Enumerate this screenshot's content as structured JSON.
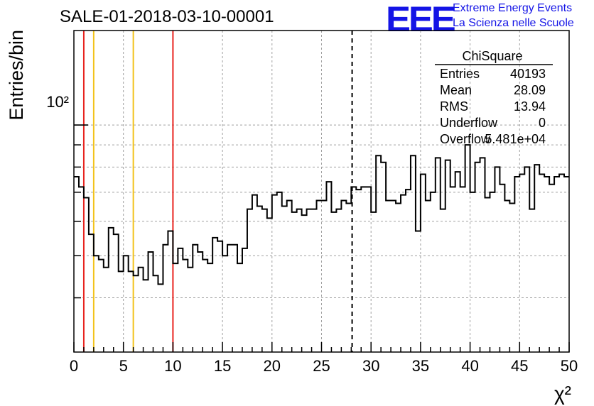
{
  "header": {
    "title": "SALE-01-2018-03-10-00001",
    "logo_text": "EEE",
    "logo_line1": "Extreme Energy Events",
    "logo_line2": "La Scienza nelle Scuole"
  },
  "stats_box": {
    "title": "ChiSquare",
    "rows": [
      {
        "label": "Entries",
        "value": "40193"
      },
      {
        "label": "Mean",
        "value": "28.09"
      },
      {
        "label": "RMS",
        "value": "13.94"
      },
      {
        "label": "Underflow",
        "value": "0"
      },
      {
        "label": "Overflow",
        "value": "5.481e+04"
      }
    ]
  },
  "colors": {
    "histogram": "#000000",
    "red_line": "#e8231e",
    "yellow_line": "#f2c21b",
    "grid": "#a0a0a0",
    "logo": "#1414e6"
  },
  "chart_data": {
    "type": "histogram",
    "title": "SALE-01-2018-03-10-00001",
    "xlabel": "χ²",
    "ylabel": "Entries/bin",
    "xlim": [
      0,
      50
    ],
    "ylim": [
      30,
      165
    ],
    "y_scale": "log",
    "grid": true,
    "x_ticks": [
      0,
      5,
      10,
      15,
      20,
      25,
      30,
      35,
      40,
      45,
      50
    ],
    "x_tick_labels": [
      "0",
      "5",
      "10",
      "15",
      "20",
      "25",
      "30",
      "35",
      "40",
      "45",
      "50"
    ],
    "y_tick_label": "10²",
    "y_major_tick": 100,
    "bin_width": 0.5,
    "bin_values": [
      76,
      72,
      68,
      56,
      50,
      49,
      47,
      58,
      56,
      46,
      50,
      46,
      45,
      47,
      44,
      51,
      45,
      43,
      53,
      57,
      48,
      52,
      49,
      47,
      53,
      51,
      49,
      48,
      55,
      54,
      50,
      53,
      53,
      48,
      52,
      64,
      69,
      65,
      64,
      61,
      69,
      70,
      65,
      67,
      63,
      64,
      62,
      64,
      64,
      67,
      67,
      74,
      63,
      64,
      67,
      66,
      72,
      71,
      72,
      72,
      63,
      85,
      82,
      67,
      67,
      66,
      69,
      71,
      85,
      57,
      77,
      67,
      70,
      84,
      64,
      83,
      72,
      78,
      72,
      90,
      70,
      82,
      84,
      68,
      70,
      80,
      73,
      67,
      66,
      76,
      77,
      80,
      64,
      81,
      77,
      76,
      73,
      76,
      77,
      76
    ],
    "vertical_lines": [
      {
        "x": 1,
        "color": "red",
        "style": "solid"
      },
      {
        "x": 10,
        "color": "red",
        "style": "solid"
      },
      {
        "x": 2,
        "color": "yellow",
        "style": "solid"
      },
      {
        "x": 6,
        "color": "yellow",
        "style": "solid"
      },
      {
        "x": 28.09,
        "color": "black",
        "style": "dashed"
      }
    ]
  }
}
